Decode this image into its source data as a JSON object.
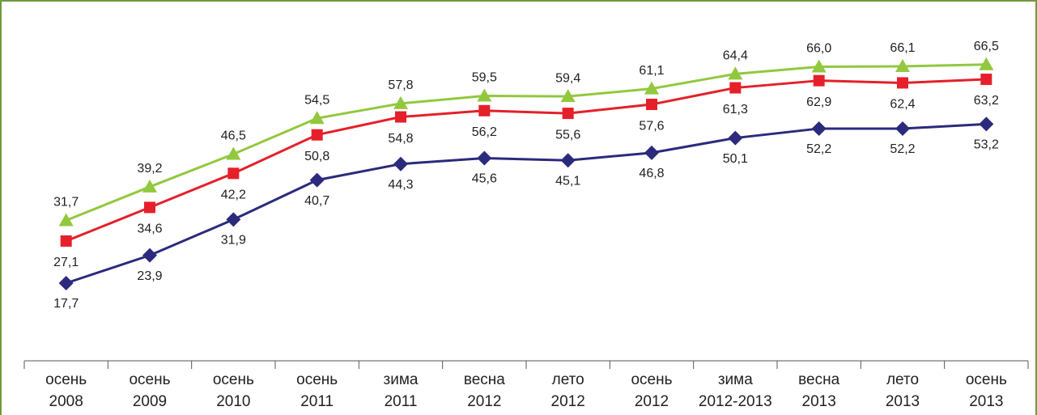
{
  "chart_data": {
    "type": "line",
    "categories": [
      "осень 2008",
      "осень 2009",
      "осень 2010",
      "осень 2011",
      "зима 2011",
      "весна 2012",
      "лето 2012",
      "осень 2012",
      "зима 2012-2013",
      "весна 2013",
      "лето 2013",
      "осень 2013"
    ],
    "series": [
      {
        "color": "#2b2a7c",
        "marker": "diamond",
        "values": [
          17.7,
          23.9,
          31.9,
          40.7,
          44.3,
          45.6,
          45.1,
          46.8,
          50.1,
          52.2,
          52.2,
          53.2
        ],
        "value_labels": [
          "17,7",
          "23,9",
          "31,9",
          "40,7",
          "44,3",
          "45,6",
          "45,1",
          "46,8",
          "50,1",
          "52,2",
          "52,2",
          "53,2"
        ]
      },
      {
        "color": "#e5202a",
        "marker": "square",
        "values": [
          27.1,
          34.6,
          42.2,
          50.8,
          54.8,
          56.2,
          55.6,
          57.6,
          61.3,
          62.9,
          62.4,
          63.2
        ],
        "value_labels": [
          "27,1",
          "34,6",
          "42,2",
          "50,8",
          "54,8",
          "56,2",
          "55,6",
          "57,6",
          "61,3",
          "62,9",
          "62,4",
          "63,2"
        ]
      },
      {
        "color": "#92c83e",
        "marker": "triangle",
        "values": [
          31.7,
          39.2,
          46.5,
          54.5,
          57.8,
          59.5,
          59.4,
          61.1,
          64.4,
          66.0,
          66.1,
          66.5
        ],
        "value_labels": [
          "31,7",
          "39,2",
          "46,5",
          "54,5",
          "57,8",
          "59,5",
          "59,4",
          "61,1",
          "64,4",
          "66,0",
          "66,1",
          "66,5"
        ]
      }
    ],
    "ylim": [
      0,
      80
    ]
  }
}
